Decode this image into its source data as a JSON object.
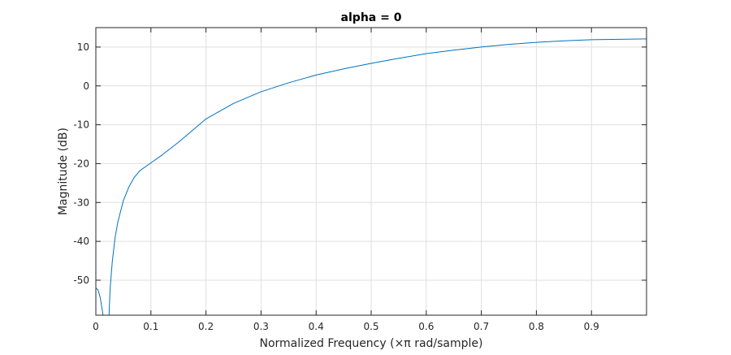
{
  "chart_data": {
    "type": "line",
    "title": "alpha = 0",
    "xlabel": "Normalized Frequency (×π rad/sample)",
    "ylabel": "Magnitude (dB)",
    "xlim": [
      0,
      1
    ],
    "ylim": [
      -59,
      15
    ],
    "x_ticks": [
      0,
      0.1,
      0.2,
      0.3,
      0.4,
      0.5,
      0.6,
      0.7,
      0.8,
      0.9
    ],
    "x_tick_labels": [
      "0",
      "0.1",
      "0.2",
      "0.3",
      "0.4",
      "0.5",
      "0.6",
      "0.7",
      "0.8",
      "0.9"
    ],
    "y_ticks": [
      -50,
      -40,
      -30,
      -20,
      -10,
      0,
      10
    ],
    "y_tick_labels": [
      "-50",
      "-40",
      "-30",
      "-20",
      "-10",
      "0",
      "10"
    ],
    "grid": true,
    "legend": "none",
    "series": [
      {
        "color": "#0072bd",
        "x": [
          0,
          0.004,
          0.008,
          0.012,
          0.016,
          0.019,
          0.021,
          0.023,
          0.026,
          0.03,
          0.035,
          0.04,
          0.05,
          0.06,
          0.07,
          0.08,
          0.1,
          0.12,
          0.15,
          0.2,
          0.25,
          0.3,
          0.35,
          0.4,
          0.45,
          0.5,
          0.55,
          0.6,
          0.65,
          0.7,
          0.75,
          0.8,
          0.85,
          0.9,
          0.95,
          1.0
        ],
        "y": [
          -52,
          -52.5,
          -54.5,
          -58,
          -62,
          -68,
          -68,
          -62,
          -52,
          -45,
          -39,
          -35,
          -29.5,
          -26,
          -23.5,
          -21.8,
          -19.8,
          -17.8,
          -14.5,
          -8.5,
          -4.5,
          -1.5,
          0.8,
          2.8,
          4.4,
          5.8,
          7.1,
          8.3,
          9.2,
          10.0,
          10.7,
          11.2,
          11.6,
          11.9,
          12.0,
          12.1
        ]
      }
    ]
  }
}
